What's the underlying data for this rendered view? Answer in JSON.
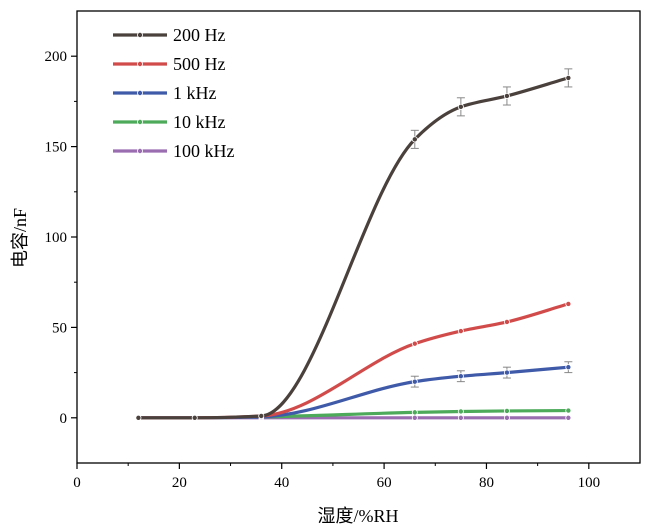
{
  "chart_data": {
    "type": "line",
    "xlabel": "湿度/%RH",
    "ylabel": "电容/nF",
    "xlim": [
      0,
      110
    ],
    "ylim": [
      -25,
      225
    ],
    "xticks": [
      0,
      20,
      40,
      60,
      80,
      100
    ],
    "yticks": [
      0,
      50,
      100,
      150,
      200
    ],
    "legend_position": "top-left",
    "grid": false,
    "series": [
      {
        "name": "200 Hz",
        "color": "#4a403c",
        "x": [
          12,
          23,
          36,
          66,
          75,
          84,
          96
        ],
        "y": [
          0,
          0,
          1,
          154,
          172,
          178,
          188
        ],
        "error": [
          0,
          0,
          0,
          5,
          5,
          5,
          5
        ]
      },
      {
        "name": "500 Hz",
        "color": "#d24b4b",
        "x": [
          12,
          23,
          36,
          66,
          75,
          84,
          96
        ],
        "y": [
          0,
          0,
          1,
          41,
          48,
          53,
          63
        ],
        "error": [
          0,
          0,
          0,
          0,
          0,
          0,
          0
        ]
      },
      {
        "name": "1 kHz",
        "color": "#3f5aa8",
        "x": [
          12,
          23,
          36,
          66,
          75,
          84,
          96
        ],
        "y": [
          0,
          0,
          0.5,
          20,
          23,
          25,
          28
        ],
        "error": [
          0,
          0,
          0,
          3,
          3,
          3,
          3
        ]
      },
      {
        "name": "10 kHz",
        "color": "#4caa5a",
        "x": [
          12,
          23,
          36,
          66,
          75,
          84,
          96
        ],
        "y": [
          0,
          0,
          0.5,
          3,
          3.5,
          3.8,
          4
        ],
        "error": [
          0,
          0,
          0,
          0,
          0,
          0,
          0
        ]
      },
      {
        "name": "100 kHz",
        "color": "#9a6cb0",
        "x": [
          12,
          23,
          36,
          66,
          75,
          84,
          96
        ],
        "y": [
          0,
          0,
          0,
          0,
          0,
          0,
          0
        ],
        "error": [
          0,
          0,
          0,
          0,
          0,
          0,
          0
        ]
      }
    ]
  }
}
